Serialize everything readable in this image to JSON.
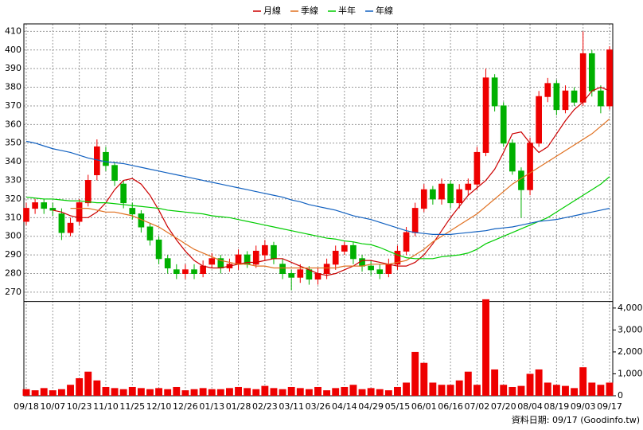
{
  "chart_data": {
    "type": "candlestick",
    "legend": [
      "月線",
      "季線",
      "半年",
      "年線"
    ],
    "categories": [
      "09/18",
      null,
      null,
      "10/07",
      null,
      null,
      "10/23",
      null,
      null,
      "11/10",
      null,
      null,
      "11/25",
      null,
      null,
      "12/10",
      null,
      null,
      "12/26",
      null,
      null,
      "01/13",
      null,
      null,
      "01/28",
      null,
      null,
      "02/23",
      null,
      null,
      "03/11",
      null,
      null,
      "03/26",
      null,
      null,
      "04/14",
      null,
      null,
      "04/29",
      null,
      null,
      "05/15",
      null,
      null,
      "06/01",
      null,
      null,
      "06/16",
      null,
      null,
      "07/02",
      null,
      null,
      "07/20",
      null,
      null,
      "08/04",
      null,
      null,
      "08/19",
      null,
      null,
      "09/03",
      null,
      null,
      "09/17"
    ],
    "ohlc": {
      "up_color": "#ee0000",
      "down_color": "#00b000",
      "open": [
        308,
        315,
        318,
        315,
        312,
        302,
        308,
        318,
        333,
        345,
        338,
        328,
        315,
        312,
        305,
        298,
        288,
        282,
        280,
        282,
        280,
        285,
        288,
        283,
        285,
        290,
        285,
        290,
        295,
        285,
        280,
        278,
        282,
        277,
        280,
        285,
        292,
        295,
        288,
        284,
        282,
        280,
        285,
        292,
        302,
        315,
        325,
        320,
        328,
        318,
        325,
        328,
        345,
        385,
        370,
        350,
        335,
        325,
        350,
        375,
        382,
        368,
        378,
        372,
        398,
        378,
        370
      ],
      "high": [
        318,
        320,
        320,
        318,
        315,
        310,
        320,
        333,
        352,
        348,
        340,
        330,
        318,
        314,
        307,
        300,
        290,
        285,
        285,
        285,
        287,
        291,
        290,
        288,
        293,
        292,
        295,
        298,
        297,
        288,
        282,
        285,
        284,
        283,
        288,
        295,
        297,
        297,
        290,
        287,
        285,
        288,
        295,
        305,
        318,
        328,
        327,
        331,
        330,
        328,
        331,
        348,
        390,
        387,
        372,
        352,
        337,
        353,
        378,
        385,
        384,
        381,
        380,
        410,
        400,
        381,
        402
      ],
      "low": [
        306,
        312,
        312,
        311,
        298,
        300,
        306,
        316,
        330,
        335,
        327,
        315,
        309,
        302,
        295,
        285,
        280,
        277,
        277,
        277,
        278,
        283,
        280,
        281,
        282,
        283,
        283,
        287,
        285,
        277,
        271,
        275,
        274,
        274,
        277,
        282,
        290,
        285,
        281,
        279,
        277,
        278,
        282,
        290,
        300,
        313,
        317,
        317,
        315,
        315,
        322,
        325,
        343,
        367,
        348,
        333,
        310,
        322,
        348,
        372,
        365,
        366,
        370,
        370,
        375,
        366,
        368
      ],
      "close": [
        315,
        318,
        315,
        314,
        302,
        307,
        318,
        330,
        348,
        338,
        330,
        318,
        312,
        305,
        298,
        288,
        283,
        280,
        282,
        280,
        284,
        288,
        283,
        285,
        290,
        285,
        292,
        295,
        288,
        280,
        278,
        282,
        277,
        280,
        285,
        292,
        295,
        288,
        284,
        282,
        280,
        285,
        292,
        302,
        315,
        325,
        320,
        328,
        318,
        325,
        328,
        345,
        385,
        370,
        350,
        335,
        325,
        350,
        375,
        382,
        368,
        378,
        372,
        398,
        378,
        370,
        400
      ]
    },
    "series": [
      {
        "name": "月線",
        "color": "#cc0000",
        "values": [
          null,
          null,
          null,
          314,
          313,
          311,
          310,
          310,
          313,
          318,
          325,
          330,
          331,
          328,
          322,
          314,
          305,
          298,
          292,
          287,
          284,
          283,
          283,
          284,
          285,
          286,
          286,
          287,
          288,
          288,
          286,
          284,
          282,
          280,
          279,
          280,
          282,
          284,
          287,
          287,
          286,
          285,
          284,
          284,
          286,
          290,
          296,
          303,
          310,
          316,
          322,
          326,
          330,
          336,
          345,
          355,
          356,
          350,
          345,
          348,
          355,
          362,
          368,
          372,
          378,
          380,
          378
        ]
      },
      {
        "name": "季線",
        "color": "#e07020",
        "values": [
          null,
          null,
          null,
          null,
          null,
          315,
          315,
          315,
          314,
          313,
          313,
          312,
          311,
          309,
          307,
          305,
          302,
          299,
          296,
          293,
          291,
          289,
          287,
          286,
          285,
          285,
          284,
          284,
          283,
          283,
          283,
          283,
          283,
          283,
          283,
          283,
          284,
          284,
          284,
          285,
          285,
          285,
          286,
          287,
          290,
          293,
          297,
          300,
          303,
          306,
          309,
          312,
          316,
          320,
          324,
          328,
          331,
          334,
          337,
          340,
          343,
          346,
          349,
          352,
          355,
          359,
          363
        ]
      },
      {
        "name": "半年",
        "color": "#00cc00",
        "values": [
          321,
          320.5,
          320,
          320,
          319.5,
          319,
          319,
          318.5,
          318,
          318,
          317.5,
          317,
          316.5,
          316,
          315.5,
          315,
          314,
          313.5,
          313,
          312.5,
          312,
          311,
          310.5,
          310,
          309,
          308,
          307,
          306,
          305,
          304,
          303,
          302,
          301,
          300,
          299,
          298.5,
          297.5,
          297,
          296,
          295.5,
          294,
          292,
          290,
          288.5,
          288,
          288,
          288,
          289,
          289.5,
          290,
          291,
          293,
          296,
          298,
          300,
          302,
          304,
          306,
          308,
          310,
          313,
          316,
          319,
          322,
          325,
          328,
          332
        ]
      },
      {
        "name": "年線",
        "color": "#1060c0",
        "values": [
          351,
          350,
          348.5,
          347,
          346,
          345,
          343.5,
          342,
          341,
          340,
          339.5,
          339,
          338,
          337,
          336,
          335,
          334,
          333,
          332,
          331,
          330,
          329,
          328,
          327,
          326,
          325,
          324,
          323,
          322,
          321,
          319.5,
          318.5,
          317,
          316,
          315,
          314,
          312.5,
          311,
          310,
          309,
          307.5,
          306,
          304.5,
          303,
          302,
          301.5,
          301,
          301,
          301,
          301.5,
          302,
          302.5,
          303,
          304,
          304.5,
          305,
          306,
          307,
          308,
          308.5,
          309,
          310,
          311,
          312,
          313,
          314,
          315
        ]
      }
    ],
    "ylim": [
      265,
      414
    ],
    "yticks": [
      270,
      280,
      290,
      300,
      310,
      320,
      330,
      340,
      350,
      360,
      370,
      380,
      390,
      400,
      410
    ],
    "volume": {
      "color": "#ee0000",
      "values": [
        300,
        250,
        350,
        250,
        300,
        500,
        800,
        1100,
        700,
        400,
        350,
        300,
        400,
        350,
        300,
        350,
        300,
        400,
        250,
        300,
        350,
        300,
        300,
        350,
        400,
        350,
        300,
        450,
        350,
        300,
        400,
        350,
        300,
        400,
        250,
        350,
        400,
        500,
        300,
        350,
        300,
        250,
        400,
        600,
        2000,
        1500,
        600,
        500,
        500,
        700,
        1100,
        500,
        4400,
        1200,
        500,
        400,
        450,
        1000,
        1200,
        600,
        500,
        450,
        350,
        1300,
        600,
        500,
        600
      ]
    },
    "y2lim": [
      0,
      4300
    ],
    "y2ticks": [
      0,
      {
        "value": 1000,
        "label": "1,000"
      },
      {
        "value": 2000,
        "label": "2,000"
      },
      {
        "value": 3000,
        "label": "3,000"
      },
      {
        "value": 4000,
        "label": "4,000"
      }
    ],
    "grid": true,
    "source_note": "資料日期: 09/17 (Goodinfo.tw)"
  }
}
